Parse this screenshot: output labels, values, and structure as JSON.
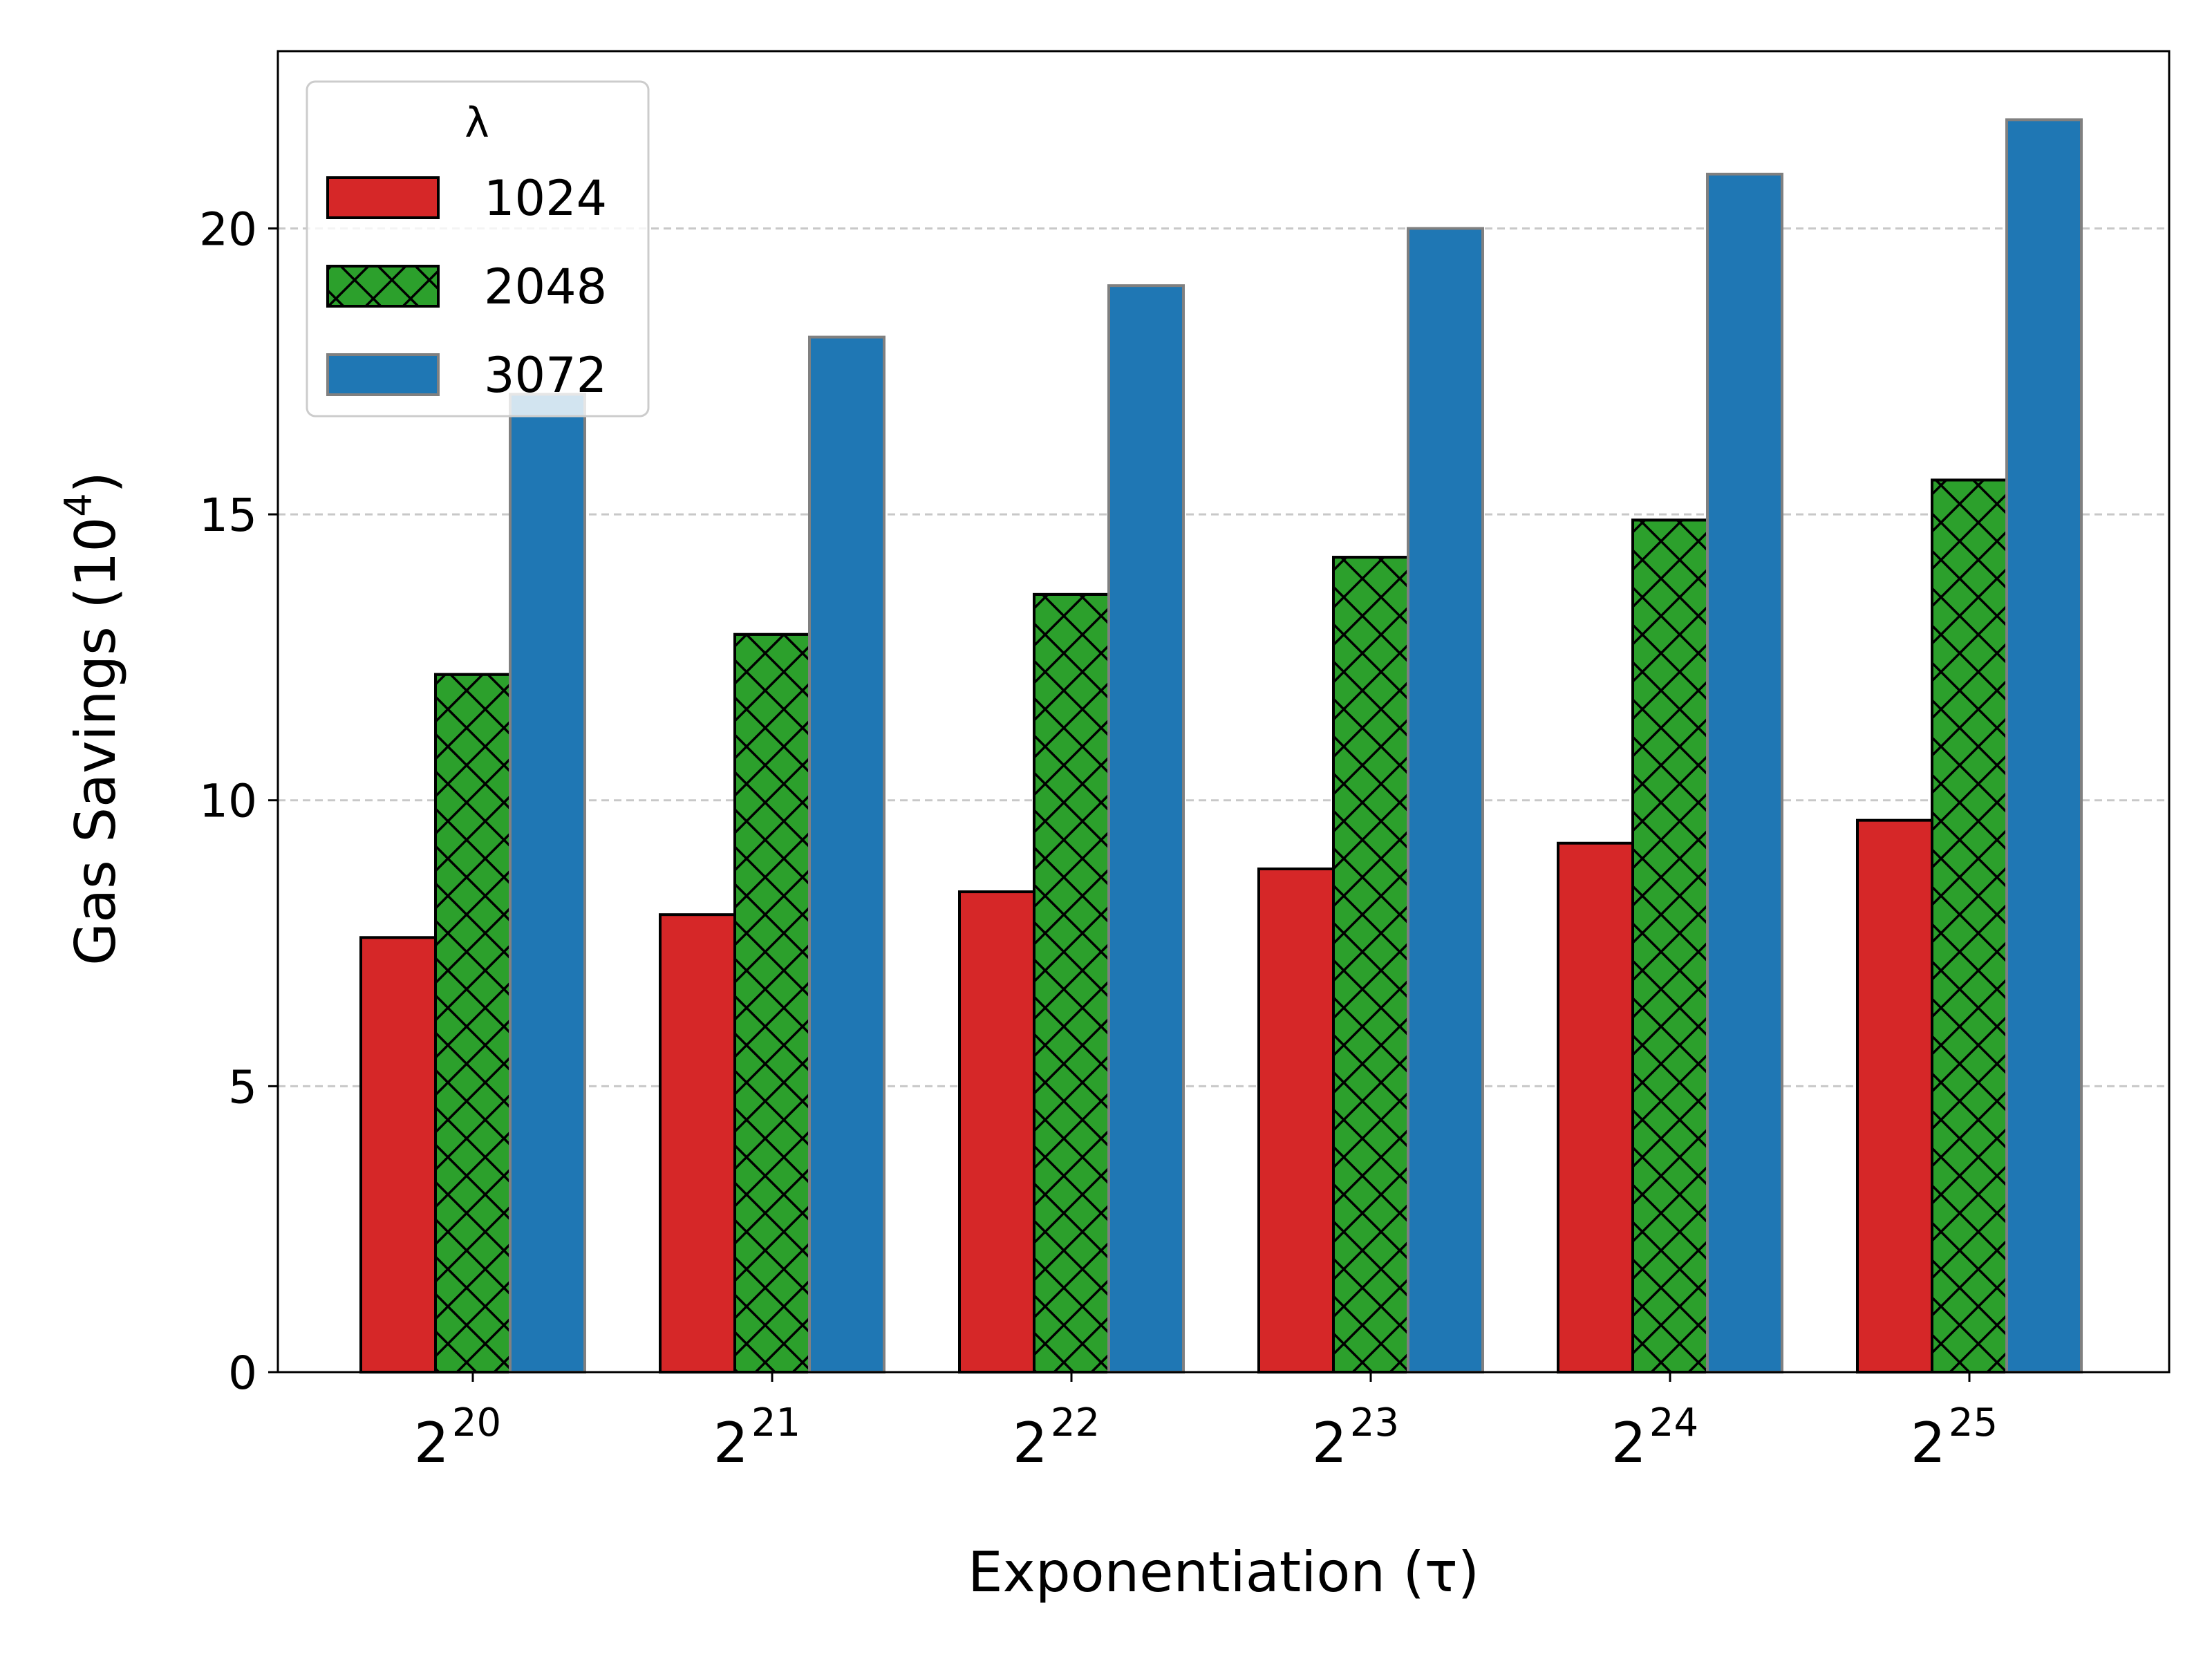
{
  "chart_data": {
    "type": "bar",
    "categories": [
      "20",
      "21",
      "22",
      "23",
      "24",
      "25"
    ],
    "category_base": "2",
    "xlabel": "Exponentiation (τ)",
    "ylabel_main": "Gas Savings (10",
    "ylabel_sup": "4",
    "ylabel_tail": ")",
    "ylim": [
      0,
      23.1
    ],
    "yticks": [
      0,
      5,
      10,
      15,
      20
    ],
    "grid": "y-dashed",
    "legend": {
      "title": "λ",
      "placement": "top-left"
    },
    "series": [
      {
        "name": "1024",
        "color": "#d62728",
        "hatch": "none",
        "values": [
          7.6,
          8.0,
          8.4,
          8.8,
          9.25,
          9.65
        ]
      },
      {
        "name": "2048",
        "color": "#2ca02c",
        "hatch": "cross",
        "values": [
          12.2,
          12.9,
          13.6,
          14.25,
          14.9,
          15.6
        ]
      },
      {
        "name": "3072",
        "color": "#1f77b4",
        "hatch": "none",
        "values": [
          17.1,
          18.1,
          19.0,
          20.0,
          20.95,
          21.9
        ]
      }
    ]
  }
}
